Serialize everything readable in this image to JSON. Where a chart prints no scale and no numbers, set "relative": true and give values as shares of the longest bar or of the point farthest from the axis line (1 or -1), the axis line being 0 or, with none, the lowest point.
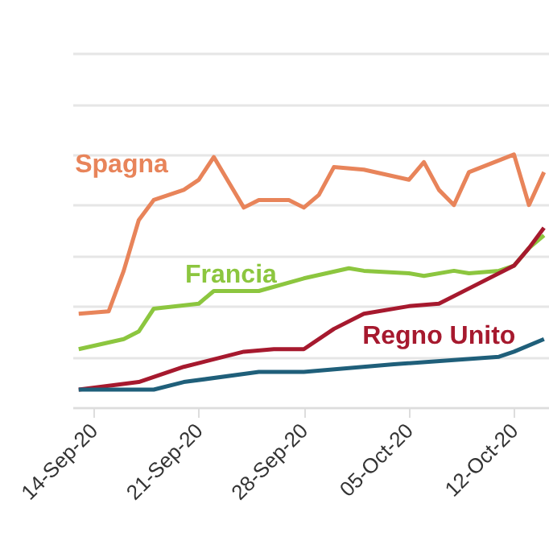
{
  "chart_data": {
    "type": "line",
    "relative": true,
    "grid": "y",
    "xlim": [
      "--09-12T14:00",
      "--10-14T08:00"
    ],
    "xticks": [
      {
        "value": "--09-14",
        "label": "14-Sep-20"
      },
      {
        "value": "--09-21",
        "label": "21-Sep-20"
      },
      {
        "value": "--09-28",
        "label": "28-Sep-20"
      },
      {
        "value": "--10-05",
        "label": "05-Oct-20"
      },
      {
        "value": "--10-12",
        "label": "12-Oct-20"
      }
    ],
    "series": [
      {
        "name": "Spagna",
        "color": "#e8845a",
        "x": [
          "--09-13",
          "--09-15",
          "--09-16",
          "--09-17",
          "--09-18",
          "--09-20",
          "--09-21",
          "--09-22",
          "--09-23",
          "--09-24",
          "--09-25",
          "--09-27",
          "--09-28",
          "--09-29",
          "--09-30",
          "--10-02",
          "--10-05",
          "--10-06",
          "--10-07",
          "--10-08",
          "--10-09",
          "--10-12",
          "--10-13",
          "--10-14"
        ],
        "values": [
          0.37,
          0.38,
          0.54,
          0.74,
          0.82,
          0.86,
          0.9,
          0.99,
          0.89,
          0.79,
          0.82,
          0.82,
          0.79,
          0.84,
          0.95,
          0.94,
          0.9,
          0.97,
          0.86,
          0.8,
          0.93,
          1.0,
          0.8,
          0.93
        ]
      },
      {
        "name": "Francia",
        "color": "#8cc63f",
        "x": [
          "--09-13",
          "--09-16",
          "--09-17",
          "--09-18",
          "--09-21",
          "--09-22",
          "--09-25",
          "--09-28",
          "--10-01",
          "--10-02",
          "--10-05",
          "--10-06",
          "--10-08",
          "--10-09",
          "--10-11",
          "--10-12",
          "--10-13",
          "--10-14"
        ],
        "values": [
          0.23,
          0.27,
          0.3,
          0.39,
          0.41,
          0.46,
          0.46,
          0.51,
          0.55,
          0.54,
          0.53,
          0.52,
          0.54,
          0.53,
          0.54,
          0.56,
          0.63,
          0.68
        ]
      },
      {
        "name": "Regno Unito",
        "color": "#a6192e",
        "x": [
          "--09-13",
          "--09-17",
          "--09-20",
          "--09-24",
          "--09-26",
          "--09-28",
          "--09-30",
          "--10-02",
          "--10-05",
          "--10-07",
          "--10-09",
          "--10-12",
          "--10-13",
          "--10-14"
        ],
        "values": [
          0.07,
          0.1,
          0.16,
          0.22,
          0.23,
          0.23,
          0.31,
          0.37,
          0.4,
          0.41,
          0.47,
          0.56,
          0.63,
          0.71
        ]
      },
      {
        "color": "#1f5f7a",
        "x": [
          "--09-13",
          "--09-18",
          "--09-20",
          "--09-25",
          "--09-28",
          "--10-04",
          "--10-11",
          "--10-12",
          "--10-14"
        ],
        "values": [
          0.07,
          0.07,
          0.1,
          0.14,
          0.14,
          0.17,
          0.2,
          0.22,
          0.27
        ]
      }
    ]
  }
}
